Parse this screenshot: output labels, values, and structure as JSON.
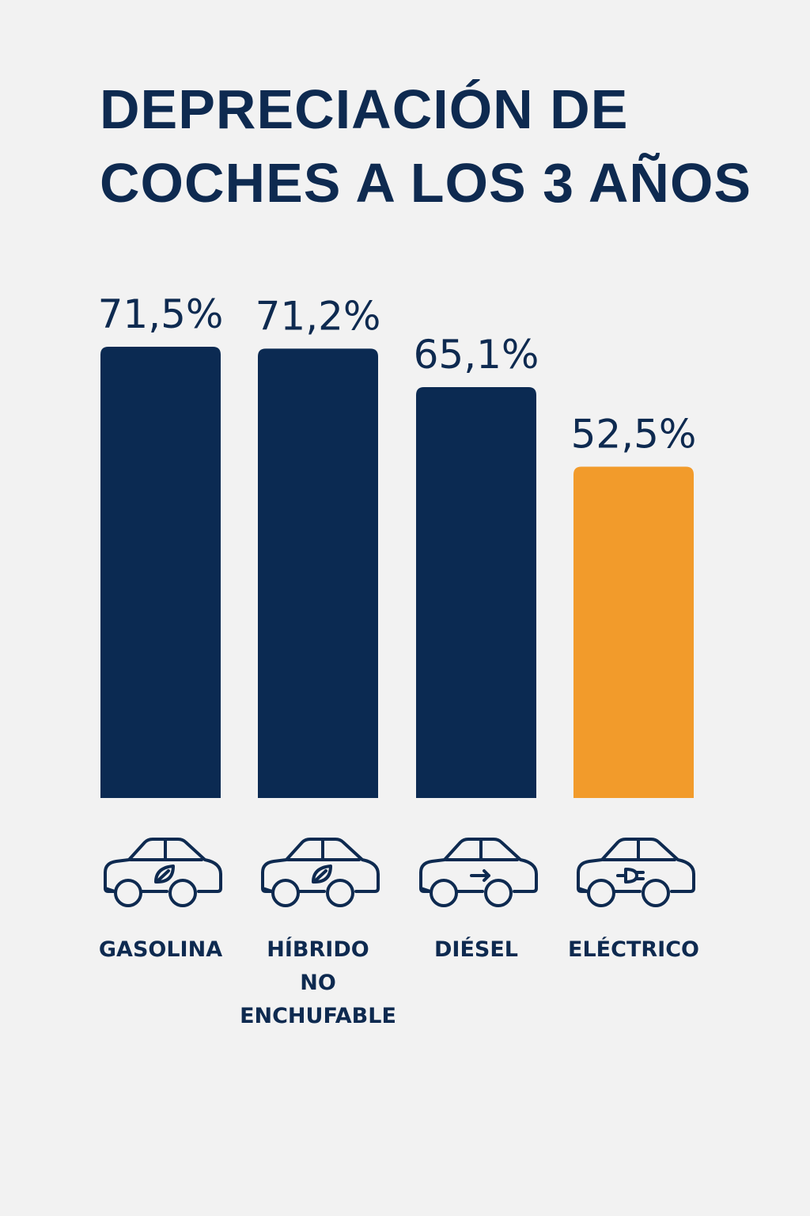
{
  "chart_data": {
    "type": "bar",
    "title_lines": [
      "DEPRECIACIÓN DE",
      "COCHES A LOS 3 AÑOS"
    ],
    "categories": [
      [
        "GASOLINA"
      ],
      [
        "HÍBRIDO",
        "NO",
        "ENCHUFABLE"
      ],
      [
        "DIÉSEL"
      ],
      [
        "ELÉCTRICO"
      ]
    ],
    "values": [
      71.5,
      71.2,
      65.1,
      52.5
    ],
    "value_labels": [
      "71,5%",
      "71,2%",
      "65,1%",
      "52,5%"
    ],
    "unit": "%",
    "bar_colors": [
      "#0b2a52",
      "#0b2a52",
      "#0b2a52",
      "#f29b2b"
    ],
    "icons": [
      "car-leaf-icon",
      "car-leaf-icon",
      "car-arrow-icon",
      "car-plug-icon"
    ],
    "ylim": [
      0,
      71.5
    ],
    "grid": false,
    "legend": "none"
  }
}
